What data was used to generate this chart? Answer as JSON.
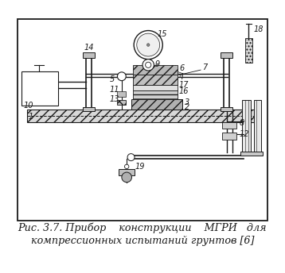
{
  "fig_width": 3.58,
  "fig_height": 3.44,
  "dpi": 100,
  "bg_color": "#ffffff",
  "dc": "#1a1a1a",
  "caption_line1": "Рис. 3.7. Прибор    конструкции    МГРИ   для",
  "caption_line2": "компрессионных испытаний грунтов [6]",
  "caption_fontsize": 9.2,
  "lw_main": 1.2,
  "lw_med": 0.9,
  "lw_thin": 0.6,
  "gray_light": "#e0e0e0",
  "gray_mid": "#c8c8c8",
  "gray_dark": "#aaaaaa",
  "white": "#ffffff"
}
